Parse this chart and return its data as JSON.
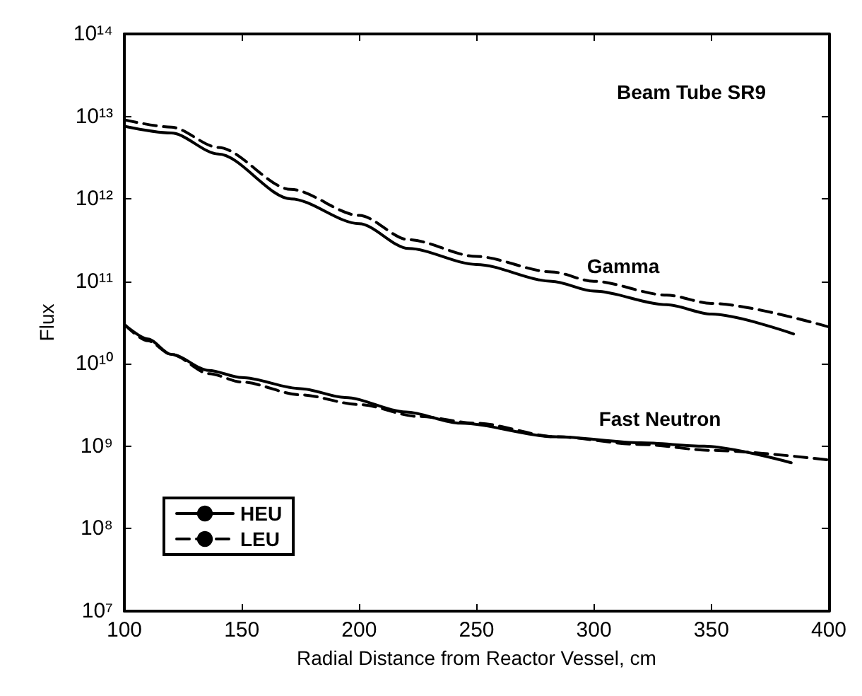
{
  "chart_data": {
    "type": "line",
    "xlabel": "Radial Distance from Reactor Vessel, cm",
    "ylabel": "Flux",
    "log": "y",
    "grid": false,
    "legend": "bottom left",
    "marker": "none",
    "xlim": [
      100,
      400
    ],
    "xticks": [
      100,
      150,
      200,
      250,
      300,
      350,
      400
    ],
    "ylim": [
      10000000.0,
      100000000000000.0
    ],
    "yticks": [
      {
        "value": 10000000.0,
        "label": "10⁷"
      },
      {
        "value": 100000000.0,
        "label": "10⁸"
      },
      {
        "value": 1000000000.0,
        "label": "10⁹"
      },
      {
        "value": 10000000000.0,
        "label": "10¹⁰"
      },
      {
        "value": 100000000000.0,
        "label": "10¹¹"
      },
      {
        "value": 1000000000000.0,
        "label": "10¹²"
      },
      {
        "value": 10000000000000.0,
        "label": "10¹³"
      },
      {
        "value": 100000000000000.0,
        "label": "10¹⁴"
      }
    ],
    "series": [
      {
        "name": "HEU",
        "color": "#000000",
        "line_style": "solid",
        "x": [
          100,
          120,
          140,
          171,
          200,
          221,
          250,
          282,
          300,
          331,
          350,
          385
        ],
        "values": [
          7600000000000.0,
          6300000000000.0,
          3500000000000.0,
          1000000000000.0,
          500000000000.0,
          250000000000.0,
          160000000000.0,
          100000000000.0,
          76000000000.0,
          52000000000.0,
          40000000000.0,
          23000000000.0
        ]
      },
      {
        "name": "LEU",
        "color": "#000000",
        "line_style": "dashed",
        "x": [
          100,
          120,
          140,
          171,
          200,
          221,
          250,
          282,
          300,
          331,
          350,
          400
        ],
        "values": [
          9100000000000.0,
          7400000000000.0,
          4200000000000.0,
          1300000000000.0,
          630000000000.0,
          320000000000.0,
          200000000000.0,
          130000000000.0,
          100000000000.0,
          68000000000.0,
          54000000000.0,
          28000000000.0
        ]
      },
      {
        "color": "#000000",
        "line_style": "solid",
        "x": [
          100,
          110,
          120,
          136,
          150,
          175,
          194,
          220,
          243,
          284,
          320,
          347,
          384
        ],
        "values": [
          30000000000.0,
          20000000000.0,
          13000000000.0,
          8300000000.0,
          6800000000.0,
          5000000000.0,
          3900000000.0,
          2600000000.0,
          1900000000.0,
          1300000000.0,
          1100000000.0,
          1000000000.0,
          630000000.0
        ]
      },
      {
        "color": "#000000",
        "line_style": "dashed",
        "x": [
          100,
          110,
          120,
          136,
          150,
          175,
          200,
          225,
          250,
          284,
          320,
          350,
          400
        ],
        "values": [
          30000000000.0,
          19000000000.0,
          13000000000.0,
          7600000000.0,
          6000000000.0,
          4200000000.0,
          3200000000.0,
          2300000000.0,
          1900000000.0,
          1300000000.0,
          1050000000.0,
          890000000.0,
          680000000.0
        ]
      }
    ],
    "annotations": [
      "Beam Tube SR9",
      "Gamma",
      "Fast Neutron"
    ]
  }
}
